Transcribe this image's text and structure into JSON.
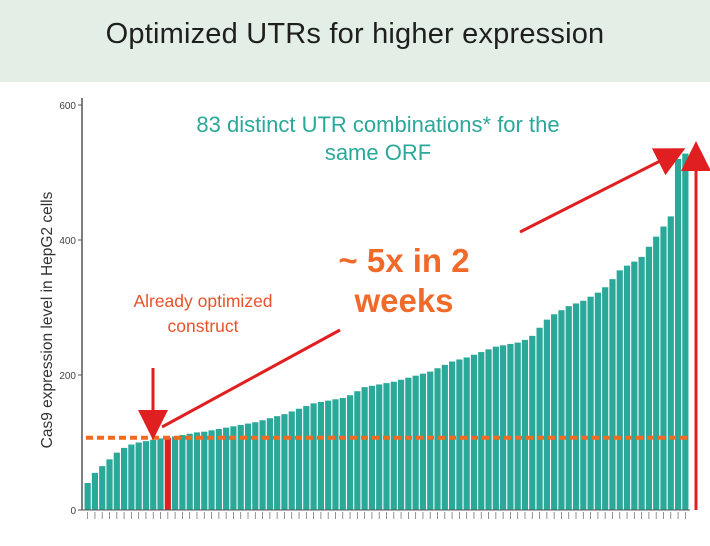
{
  "slide": {
    "title": "Optimized UTRs for higher expression",
    "background_band_color": "#e3efe6"
  },
  "chart_data": {
    "type": "bar",
    "title": "",
    "ylabel": "Cas9 expression level in HepG2 cells",
    "xlabel": "",
    "ylim": [
      0,
      600
    ],
    "yticks": [
      0,
      200,
      400,
      600
    ],
    "bar_color": "#2aa89a",
    "highlight_color": "#e02020",
    "highlight_index": 11,
    "reference_value": 107,
    "values": [
      40,
      55,
      65,
      75,
      85,
      92,
      97,
      100,
      102,
      104,
      106,
      107,
      109,
      111,
      113,
      115,
      116,
      118,
      120,
      122,
      124,
      126,
      128,
      130,
      133,
      136,
      139,
      142,
      146,
      150,
      154,
      158,
      160,
      162,
      164,
      166,
      170,
      176,
      182,
      184,
      186,
      188,
      190,
      193,
      196,
      199,
      202,
      205,
      210,
      215,
      220,
      223,
      226,
      230,
      234,
      238,
      242,
      244,
      246,
      248,
      252,
      258,
      270,
      282,
      290,
      296,
      302,
      306,
      310,
      316,
      322,
      330,
      342,
      355,
      362,
      368,
      375,
      390,
      405,
      420,
      435,
      520,
      528
    ],
    "annotations": {
      "combinations": "83 distinct UTR combinations* for the same ORF",
      "fold_change": "~ 5x in 2 weeks",
      "optimized": "Already optimized construct"
    }
  }
}
